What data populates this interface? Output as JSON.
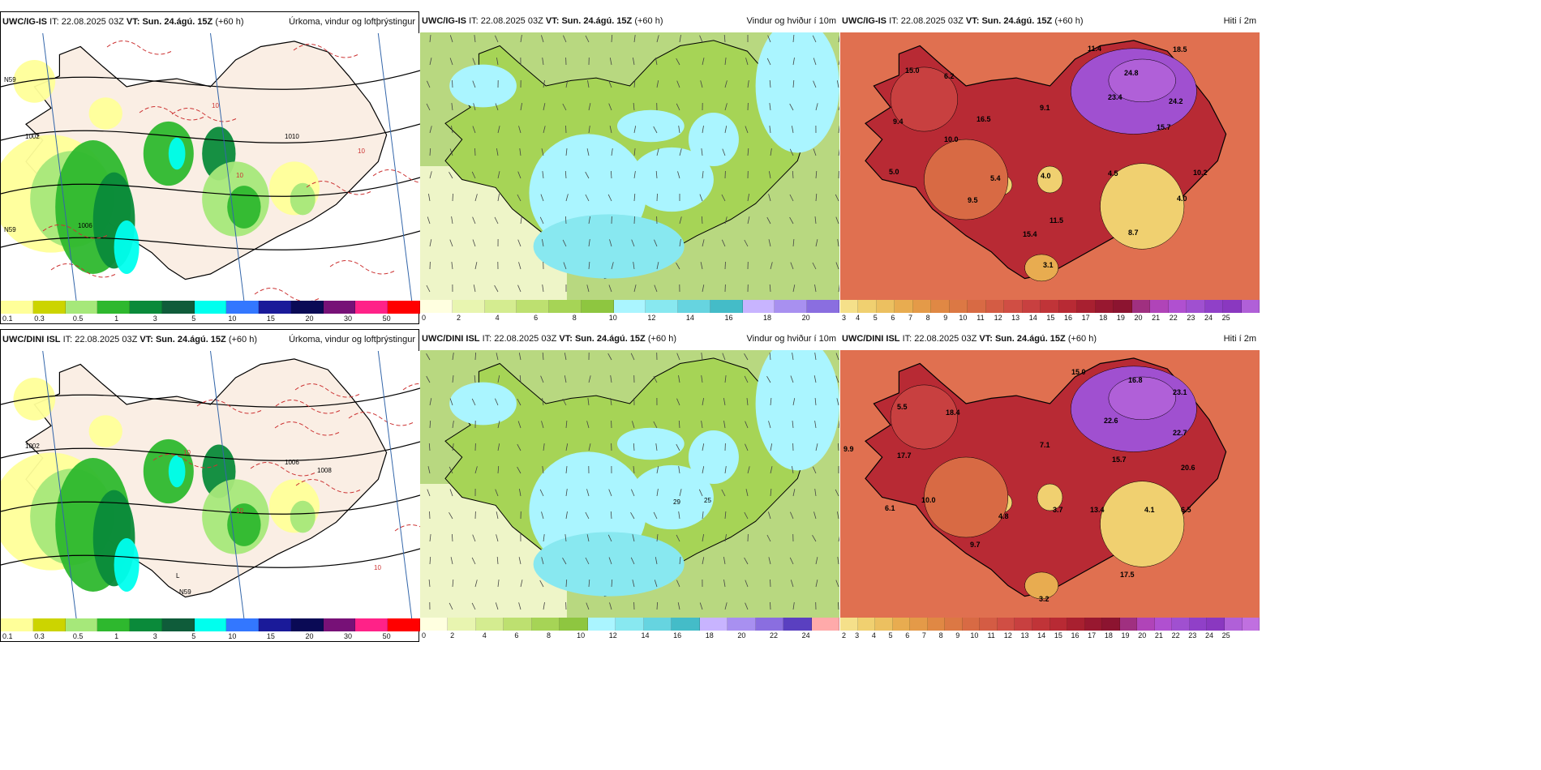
{
  "panels": [
    {
      "id": "p1",
      "model": "UWC/IG-IS",
      "it_label": "IT:",
      "it": "22.08.2025 03Z",
      "vt_label": "VT:",
      "vt": "Sun. 24.ágú. 15Z",
      "lead": "(+60 h)",
      "title": "Úrkoma, vindur og loftþrýstingur",
      "kind": "precip",
      "colorbar": {
        "colors": [
          "#ffff99",
          "#ccd400",
          "#a6e87a",
          "#2eb82e",
          "#0a8a3a",
          "#0f5c3a",
          "#00ffee",
          "#3377ff",
          "#1a1a99",
          "#0a0a55",
          "#771177",
          "#ff2288",
          "#ff0000"
        ],
        "ticks": [
          "0.1",
          "0.3",
          "0.5",
          "1",
          "3",
          "5",
          "10",
          "15",
          "20",
          "30",
          "50"
        ]
      },
      "labels": [
        {
          "text": "1002"
        },
        {
          "text": "1006"
        },
        {
          "text": "1010"
        },
        {
          "text": "10"
        },
        {
          "text": "10"
        },
        {
          "text": "10"
        },
        {
          "text": "N59"
        },
        {
          "text": "N59"
        }
      ]
    },
    {
      "id": "p2",
      "model": "UWC/IG-IS",
      "it_label": "IT:",
      "it": "22.08.2025 03Z",
      "vt_label": "VT:",
      "vt": "Sun. 24.ágú. 15Z",
      "lead": "(+60 h)",
      "title": "Vindur og hviður í 10m",
      "kind": "wind",
      "colorbar": {
        "colors": [
          "#ffffe0",
          "#e8f5b0",
          "#d4ec90",
          "#bde070",
          "#a6d456",
          "#8ec640",
          "#aaf5ff",
          "#88e8f0",
          "#66d4e0",
          "#44bcc8",
          "#c8b4ff",
          "#a890f0",
          "#8a6ee0"
        ],
        "ticks": [
          "0",
          "2",
          "4",
          "6",
          "8",
          "10",
          "12",
          "14",
          "16",
          "18",
          "20"
        ]
      },
      "labels": []
    },
    {
      "id": "p3",
      "model": "UWC/IG-IS",
      "it_label": "IT:",
      "it": "22.08.2025 03Z",
      "vt_label": "VT:",
      "vt": "Sun. 24.ágú. 15Z",
      "lead": "(+60 h)",
      "title": "Hiti í 2m",
      "kind": "temp",
      "colorbar": {
        "colors": [
          "#f5e08a",
          "#f0d070",
          "#ecc060",
          "#e8ac50",
          "#e49a48",
          "#e08844",
          "#dc7844",
          "#d86a44",
          "#d45c44",
          "#d04e44",
          "#c84040",
          "#c03438",
          "#b82a34",
          "#a82030",
          "#981830",
          "#8c1430",
          "#a03080",
          "#b044b8",
          "#b050d0",
          "#a050d0",
          "#9040c8",
          "#8a38c0",
          "#b060d8"
        ],
        "ticks": [
          "3",
          "4",
          "5",
          "6",
          "7",
          "8",
          "9",
          "10",
          "11",
          "12",
          "13",
          "14",
          "15",
          "16",
          "17",
          "18",
          "19",
          "20",
          "21",
          "22",
          "23",
          "24",
          "25"
        ]
      },
      "labels": [
        {
          "text": "15.0"
        },
        {
          "text": "6.2"
        },
        {
          "text": "11.4"
        },
        {
          "text": "18.5"
        },
        {
          "text": "24.8"
        },
        {
          "text": "9.4"
        },
        {
          "text": "16.5"
        },
        {
          "text": "9.1"
        },
        {
          "text": "23.4"
        },
        {
          "text": "24.2"
        },
        {
          "text": "15.7"
        },
        {
          "text": "10.0"
        },
        {
          "text": "5.0"
        },
        {
          "text": "5.4"
        },
        {
          "text": "4.0"
        },
        {
          "text": "4.5"
        },
        {
          "text": "10.2"
        },
        {
          "text": "9.5"
        },
        {
          "text": "4.0"
        },
        {
          "text": "11.5"
        },
        {
          "text": "15.4"
        },
        {
          "text": "8.7"
        },
        {
          "text": "3.1"
        }
      ]
    },
    {
      "id": "p4",
      "model": "UWC/DINI ISL",
      "it_label": "IT:",
      "it": "22.08.2025 03Z",
      "vt_label": "VT:",
      "vt": "Sun. 24.ágú. 15Z",
      "lead": "(+60 h)",
      "title": "Úrkoma, vindur og loftþrýstingur",
      "kind": "precip",
      "colorbar": {
        "colors": [
          "#ffff99",
          "#ccd400",
          "#a6e87a",
          "#2eb82e",
          "#0a8a3a",
          "#0f5c3a",
          "#00ffee",
          "#3377ff",
          "#1a1a99",
          "#0a0a55",
          "#771177",
          "#ff2288",
          "#ff0000"
        ],
        "ticks": [
          "0.1",
          "0.3",
          "0.5",
          "1",
          "3",
          "5",
          "10",
          "15",
          "20",
          "30",
          "50"
        ]
      },
      "labels": [
        {
          "text": "1002"
        },
        {
          "text": "1006"
        },
        {
          "text": "1008"
        },
        {
          "text": "10"
        },
        {
          "text": "10"
        },
        {
          "text": "10"
        },
        {
          "text": "L"
        },
        {
          "text": "N59"
        }
      ]
    },
    {
      "id": "p5",
      "model": "UWC/DINI ISL",
      "it_label": "IT:",
      "it": "22.08.2025 03Z",
      "vt_label": "VT:",
      "vt": "Sun. 24.ágú. 15Z",
      "lead": "(+60 h)",
      "title": "Vindur og hviður í 10m",
      "kind": "wind",
      "colorbar": {
        "colors": [
          "#ffffe0",
          "#e8f5b0",
          "#d4ec90",
          "#bde070",
          "#a6d456",
          "#8ec640",
          "#aaf5ff",
          "#88e8f0",
          "#66d4e0",
          "#44bcc8",
          "#c8b4ff",
          "#a890f0",
          "#8a6ee0",
          "#5a40c0",
          "#ffaaaa"
        ],
        "ticks": [
          "0",
          "2",
          "4",
          "6",
          "8",
          "10",
          "12",
          "14",
          "16",
          "18",
          "20",
          "22",
          "24"
        ]
      },
      "labels": [
        {
          "text": "29"
        },
        {
          "text": "25"
        }
      ]
    },
    {
      "id": "p6",
      "model": "UWC/DINI ISL",
      "it_label": "IT:",
      "it": "22.08.2025 03Z",
      "vt_label": "VT:",
      "vt": "Sun. 24.ágú. 15Z",
      "lead": "(+60 h)",
      "title": "Hiti í 2m",
      "kind": "temp",
      "colorbar": {
        "colors": [
          "#f5e08a",
          "#f0d070",
          "#ecc060",
          "#e8ac50",
          "#e49a48",
          "#e08844",
          "#dc7844",
          "#d86a44",
          "#d45c44",
          "#d04e44",
          "#c84040",
          "#c03438",
          "#b82a34",
          "#a82030",
          "#981830",
          "#8c1430",
          "#a03080",
          "#b044b8",
          "#b050d0",
          "#a050d0",
          "#9040c8",
          "#8a38c0",
          "#b060d8",
          "#c070e0"
        ],
        "ticks": [
          "2",
          "3",
          "4",
          "5",
          "6",
          "7",
          "8",
          "9",
          "10",
          "11",
          "12",
          "13",
          "14",
          "15",
          "16",
          "17",
          "18",
          "19",
          "20",
          "21",
          "22",
          "23",
          "24",
          "25"
        ]
      },
      "labels": [
        {
          "text": "15.0"
        },
        {
          "text": "16.8"
        },
        {
          "text": "23.1"
        },
        {
          "text": "5.5"
        },
        {
          "text": "18.4"
        },
        {
          "text": "22.6"
        },
        {
          "text": "9.9"
        },
        {
          "text": "17.7"
        },
        {
          "text": "7.1"
        },
        {
          "text": "22.7"
        },
        {
          "text": "15.7"
        },
        {
          "text": "20.6"
        },
        {
          "text": "10.0"
        },
        {
          "text": "6.1"
        },
        {
          "text": "4.8"
        },
        {
          "text": "3.7"
        },
        {
          "text": "13.4"
        },
        {
          "text": "4.1"
        },
        {
          "text": "6.5"
        },
        {
          "text": "9.7"
        },
        {
          "text": "17.5"
        },
        {
          "text": "3.2"
        }
      ]
    }
  ]
}
